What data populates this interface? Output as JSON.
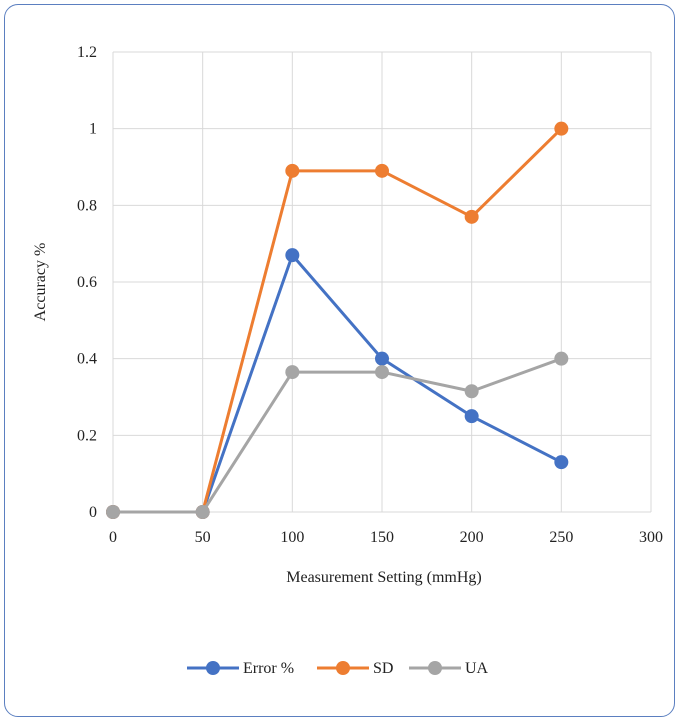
{
  "chart_data": {
    "type": "line",
    "xlabel": "Measurement Setting (mmHg)",
    "ylabel": "Accuracy %",
    "xlim": [
      0,
      300
    ],
    "ylim": [
      0,
      1.2
    ],
    "x_ticks": [
      "0",
      "50",
      "100",
      "150",
      "200",
      "250",
      "300"
    ],
    "y_ticks": [
      "0",
      "0.2",
      "0.4",
      "0.6",
      "0.8",
      "1",
      "1.2"
    ],
    "grid": true,
    "legend_position": "bottom",
    "x": [
      0,
      50,
      100,
      150,
      200,
      250
    ],
    "series": [
      {
        "name": "Error %",
        "color": "#4472c4",
        "values": [
          0,
          0,
          0.67,
          0.4,
          0.25,
          0.13
        ]
      },
      {
        "name": "SD",
        "color": "#ed7d31",
        "values": [
          0,
          0,
          0.89,
          0.89,
          0.77,
          1.0
        ]
      },
      {
        "name": "UA",
        "color": "#a5a5a5",
        "values": [
          0,
          0,
          0.365,
          0.365,
          0.315,
          0.4
        ]
      }
    ]
  }
}
